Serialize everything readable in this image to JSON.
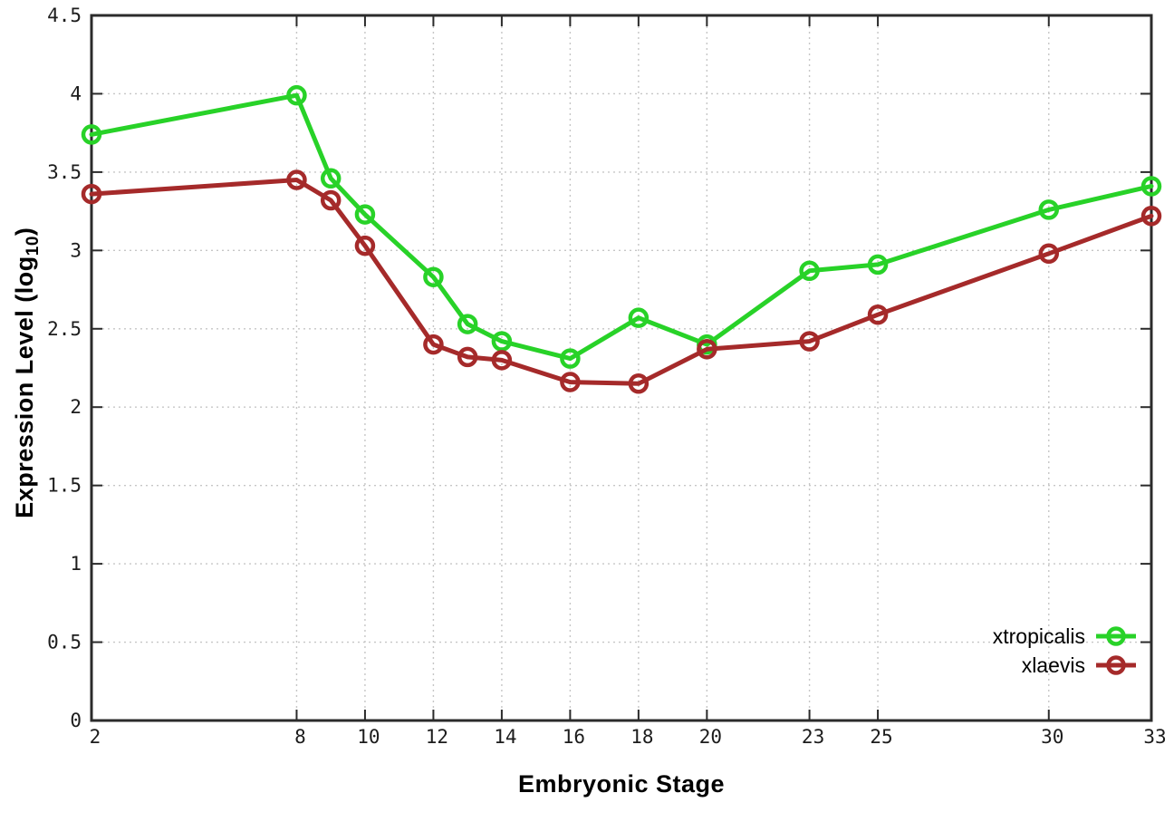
{
  "chart_data": {
    "type": "line",
    "title": "",
    "xlabel": "Embryonic Stage",
    "ylabel": "Expression Level (log10)",
    "ylabel_parts": {
      "main": "Expression Level (log",
      "sub": "10",
      "suffix": ")"
    },
    "xlim": [
      2,
      33
    ],
    "ylim": [
      0,
      4.5
    ],
    "x_ticks": [
      2,
      8,
      10,
      12,
      14,
      16,
      18,
      20,
      23,
      25,
      30,
      33
    ],
    "y_ticks": [
      0,
      0.5,
      1,
      1.5,
      2,
      2.5,
      3,
      3.5,
      4,
      4.5
    ],
    "grid": true,
    "legend_position": "bottom-right",
    "x": [
      2,
      8,
      9,
      10,
      12,
      13,
      14,
      16,
      18,
      20,
      23,
      25,
      30,
      33
    ],
    "series": [
      {
        "name": "xtropicalis",
        "color": "#28d228",
        "values": [
          3.74,
          3.99,
          3.46,
          3.23,
          2.83,
          2.53,
          2.42,
          2.31,
          2.57,
          2.4,
          2.87,
          2.91,
          3.26,
          3.41
        ]
      },
      {
        "name": "xlaevis",
        "color": "#a52a2a",
        "values": [
          3.36,
          3.45,
          3.32,
          3.03,
          2.4,
          2.32,
          2.3,
          2.16,
          2.15,
          2.37,
          2.42,
          2.59,
          2.98,
          3.22
        ]
      }
    ]
  },
  "frame": {
    "background": "#ffffff",
    "border_color": "#2b2b2b",
    "tick_color": "#2b2b2b",
    "grid_color": "#c6c6c6",
    "text_color": "#1c1c1c"
  }
}
